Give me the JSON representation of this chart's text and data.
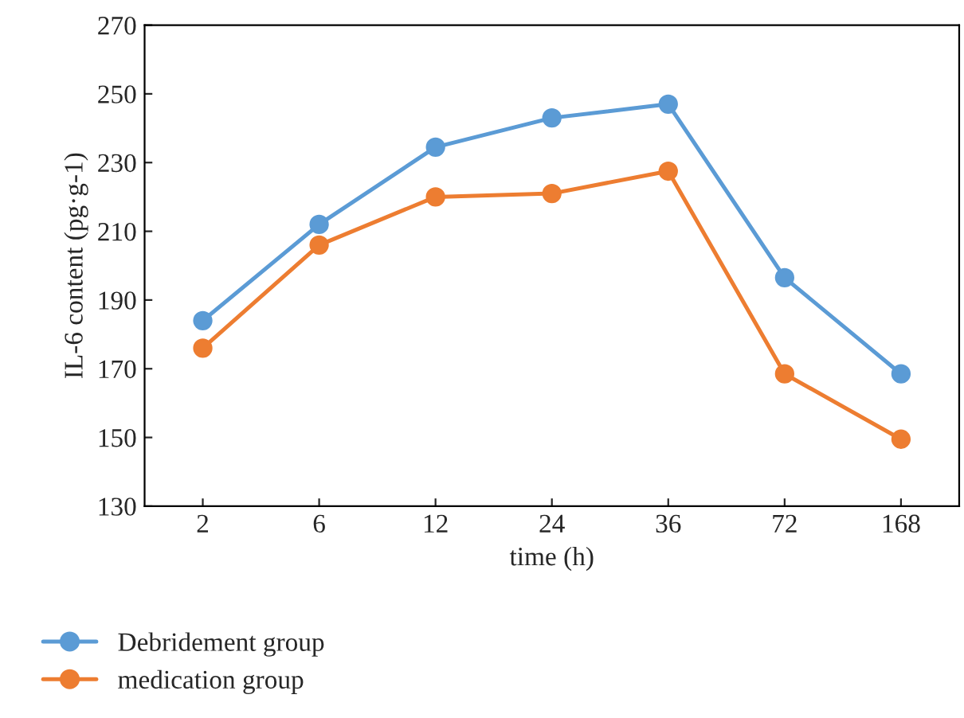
{
  "chart_data": {
    "type": "line",
    "xlabel": "time (h)",
    "ylabel": "IL-6 content (pg·g-1)",
    "categories": [
      "2",
      "6",
      "12",
      "24",
      "36",
      "72",
      "168"
    ],
    "series": [
      {
        "name": "Debridement group",
        "color": "#5b9bd5",
        "values": [
          184,
          212,
          234.5,
          243,
          247,
          196.5,
          168.5
        ]
      },
      {
        "name": "medication group",
        "color": "#ed7d31",
        "values": [
          176,
          206,
          220,
          221,
          227.5,
          168.5,
          149.5
        ]
      }
    ],
    "ylim": [
      130,
      270
    ],
    "yticks": [
      130,
      150,
      170,
      190,
      210,
      230,
      250,
      270
    ],
    "marker": "circle",
    "line_style": "solid",
    "legend": "bottom",
    "grid": false
  }
}
